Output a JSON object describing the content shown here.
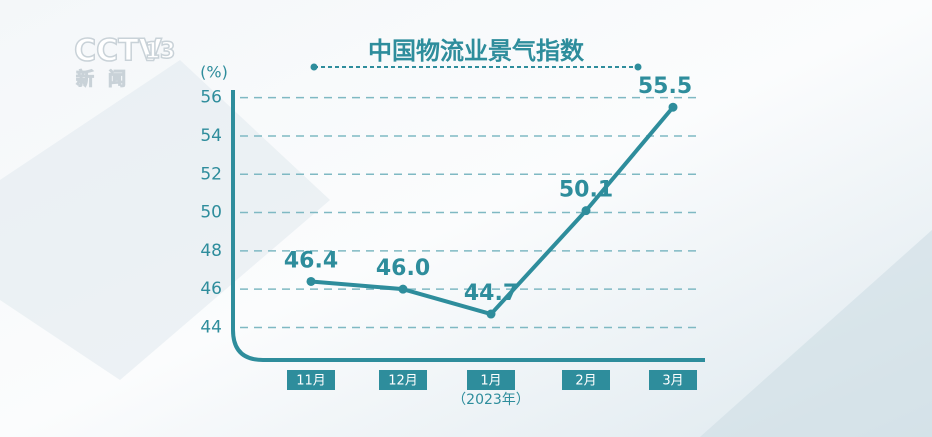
{
  "chart_data": {
    "type": "line",
    "title": "中国物流业景气指数",
    "ylabel": "(%)",
    "xlabel": "（2023年）",
    "watermark": [
      "CCTV",
      "13",
      "新闻"
    ],
    "categories": [
      "11月",
      "12月",
      "1月",
      "2月",
      "3月"
    ],
    "values": [
      46.4,
      46.0,
      44.7,
      50.1,
      55.5
    ],
    "value_labels": [
      "46.4",
      "46.0",
      "44.7",
      "50.1",
      "55.5"
    ],
    "color": "#2e8d9c",
    "ylim": [
      42.3,
      56.4
    ],
    "yticks": [
      44,
      46,
      48,
      50,
      52,
      54,
      56
    ],
    "grid": true
  }
}
